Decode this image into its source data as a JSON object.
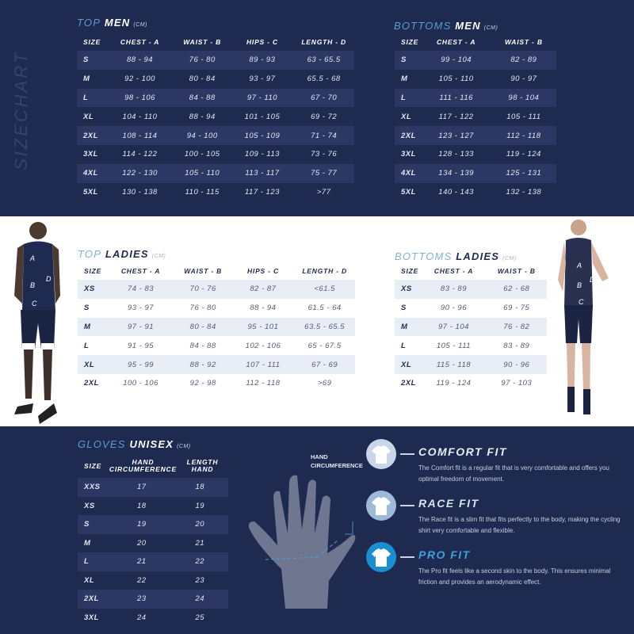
{
  "side_label": "SIZECHART",
  "top_men": {
    "t1": "TOP",
    "t2": "MEN",
    "unit": "(CM)",
    "headers": [
      "SIZE",
      "CHEST - A",
      "WAIST - B",
      "HIPS - C",
      "LENGTH  - D"
    ],
    "rows": [
      [
        "S",
        "88 - 94",
        "76 - 80",
        "89 - 93",
        "63 - 65.5"
      ],
      [
        "M",
        "92 - 100",
        "80 - 84",
        "93 - 97",
        "65.5 - 68"
      ],
      [
        "L",
        "98 - 106",
        "84 - 88",
        "97 - 110",
        "67 - 70"
      ],
      [
        "XL",
        "104 - 110",
        "88 - 94",
        "101 - 105",
        "69 - 72"
      ],
      [
        "2XL",
        "108 - 114",
        "94 - 100",
        "105 - 109",
        "71 - 74"
      ],
      [
        "3XL",
        "114 - 122",
        "100 - 105",
        "109 - 113",
        "73 - 76"
      ],
      [
        "4XL",
        "122 - 130",
        "105 - 110",
        "113 - 117",
        "75 - 77"
      ],
      [
        "5XL",
        "130 - 138",
        "110 - 115",
        "117 - 123",
        ">77"
      ]
    ]
  },
  "bottoms_men": {
    "t1": "BOTTOMS",
    "t2": "MEN",
    "unit": "(CM)",
    "headers": [
      "SIZE",
      "CHEST - A",
      "WAIST - B"
    ],
    "rows": [
      [
        "S",
        "99 - 104",
        "82 - 89"
      ],
      [
        "M",
        "105 - 110",
        "90 - 97"
      ],
      [
        "L",
        "111 - 116",
        "98 - 104"
      ],
      [
        "XL",
        "117 - 122",
        "105 - 111"
      ],
      [
        "2XL",
        "123 - 127",
        "112 - 118"
      ],
      [
        "3XL",
        "128 - 133",
        "119 - 124"
      ],
      [
        "4XL",
        "134 - 139",
        "125 - 131"
      ],
      [
        "5XL",
        "140 - 143",
        "132 - 138"
      ]
    ]
  },
  "top_ladies": {
    "t1": "TOP",
    "t2": "LADIES",
    "unit": "(CM)",
    "headers": [
      "SIZE",
      "CHEST - A",
      "WAIST - B",
      "HIPS - C",
      "LENGTH  - D"
    ],
    "rows": [
      [
        "XS",
        "74 - 83",
        "70 - 76",
        "82 - 87",
        "<61.5"
      ],
      [
        "S",
        "93 - 97",
        "76 - 80",
        "88 - 94",
        "61.5 - 64"
      ],
      [
        "M",
        "97 - 91",
        "80 - 84",
        "95 - 101",
        "63.5 - 65.5"
      ],
      [
        "L",
        "91 - 95",
        "84 - 88",
        "102 - 106",
        "65 - 67.5"
      ],
      [
        "XL",
        "95 - 99",
        "88 - 92",
        "107 - 111",
        "67 - 69"
      ],
      [
        "2XL",
        "100 - 106",
        "92 - 98",
        "112 - 118",
        ">69"
      ]
    ]
  },
  "bottoms_ladies": {
    "t1": "BOTTOMS",
    "t2": "LADIES",
    "unit": "(CM)",
    "headers": [
      "SIZE",
      "CHEST - A",
      "WAIST - B"
    ],
    "rows": [
      [
        "XS",
        "83 - 89",
        "62 - 68"
      ],
      [
        "S",
        "90 - 96",
        "69 - 75"
      ],
      [
        "M",
        "97 - 104",
        "76 - 82"
      ],
      [
        "L",
        "105 - 111",
        "83 - 89"
      ],
      [
        "XL",
        "115 - 118",
        "90 - 96"
      ],
      [
        "2XL",
        "119 - 124",
        "97 - 103"
      ]
    ]
  },
  "gloves": {
    "t1": "GLOVES",
    "t2": "UNISEX",
    "unit": "(CM)",
    "headers": [
      "SIZE",
      "HAND\nCIRCUMFERENCE",
      "LENGTH\nHAND"
    ],
    "rows": [
      [
        "XXS",
        "17",
        "18"
      ],
      [
        "XS",
        "18",
        "19"
      ],
      [
        "S",
        "19",
        "20"
      ],
      [
        "M",
        "20",
        "21"
      ],
      [
        "L",
        "21",
        "22"
      ],
      [
        "XL",
        "22",
        "23"
      ],
      [
        "2XL",
        "23",
        "24"
      ],
      [
        "3XL",
        "24",
        "25"
      ]
    ],
    "hand_label_1": "HAND",
    "hand_label_2": "CIRCUMFERENCE"
  },
  "figure_labels": [
    "A",
    "B",
    "C",
    "D"
  ],
  "fits": [
    {
      "title": "COMFORT FIT",
      "desc": "The Comfort fit is a regular fit that is very comfortable and offers you optimal freedom of movement.",
      "color": "#c9d6ea",
      "title_color": "#e6ecf6"
    },
    {
      "title": "RACE FIT",
      "desc": "The Race fit is a slim fit that fits perfectly to the body, making the cycling shirt very comfortable and flexible.",
      "color": "#9dbbd9",
      "title_color": "#d8e4f2"
    },
    {
      "title": "PRO FIT",
      "desc": "The Pro fit feels like a second skin to the body. This ensures minimal friction and provides an aerodynamic effect.",
      "color": "#1a8fcf",
      "title_color": "#3aa3dc"
    }
  ]
}
